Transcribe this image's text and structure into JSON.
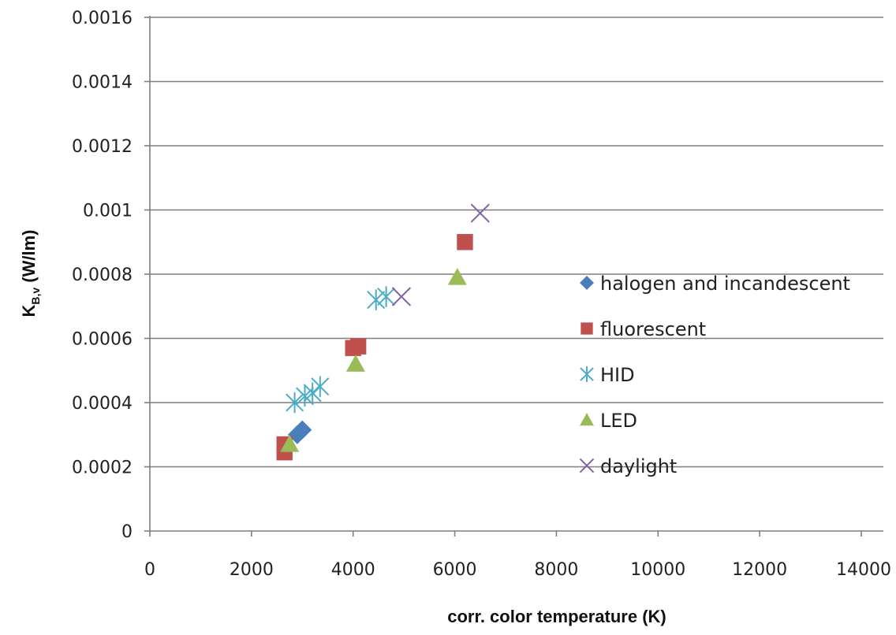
{
  "chart_data": {
    "type": "scatter",
    "title": "",
    "xlabel": "corr. color temperature (K)",
    "ylabel": "K",
    "ylabel_sub": "B,v",
    "ylabel_unit": " (W/lm)",
    "xlim": [
      0,
      14000
    ],
    "ylim": [
      0,
      0.0016
    ],
    "x_ticks": [
      "0",
      "2000",
      "4000",
      "6000",
      "8000",
      "10000",
      "12000",
      "14000"
    ],
    "y_ticks": [
      "0",
      "0.0002",
      "0.0004",
      "0.0006",
      "0.0008",
      "0.001",
      "0.0012",
      "0.0014",
      "0.0016"
    ],
    "grid": "horizontal",
    "legend_position": "right",
    "series": [
      {
        "name": "halogen and incandescent",
        "marker": "diamond",
        "color": "#4a7ebb",
        "points": [
          [
            2900,
            0.0003
          ],
          [
            3000,
            0.000315
          ]
        ]
      },
      {
        "name": "fluorescent",
        "marker": "square",
        "color": "#c0504d",
        "points": [
          [
            2650,
            0.000245
          ],
          [
            2650,
            0.00027
          ],
          [
            4000,
            0.00057
          ],
          [
            4100,
            0.000575
          ],
          [
            6200,
            0.0009
          ]
        ]
      },
      {
        "name": "HID",
        "marker": "asterisk",
        "color": "#4bacc6",
        "points": [
          [
            2850,
            0.0004
          ],
          [
            3050,
            0.00042
          ],
          [
            3200,
            0.00043
          ],
          [
            3350,
            0.00045
          ],
          [
            4450,
            0.00072
          ],
          [
            4650,
            0.00073
          ]
        ]
      },
      {
        "name": "LED",
        "marker": "triangle",
        "color": "#9bbb59",
        "points": [
          [
            2750,
            0.00027
          ],
          [
            4050,
            0.00052
          ],
          [
            6050,
            0.00079
          ]
        ]
      },
      {
        "name": "daylight",
        "marker": "x",
        "color": "#8064a2",
        "points": [
          [
            4950,
            0.00073
          ],
          [
            6500,
            0.00099
          ]
        ]
      }
    ]
  }
}
